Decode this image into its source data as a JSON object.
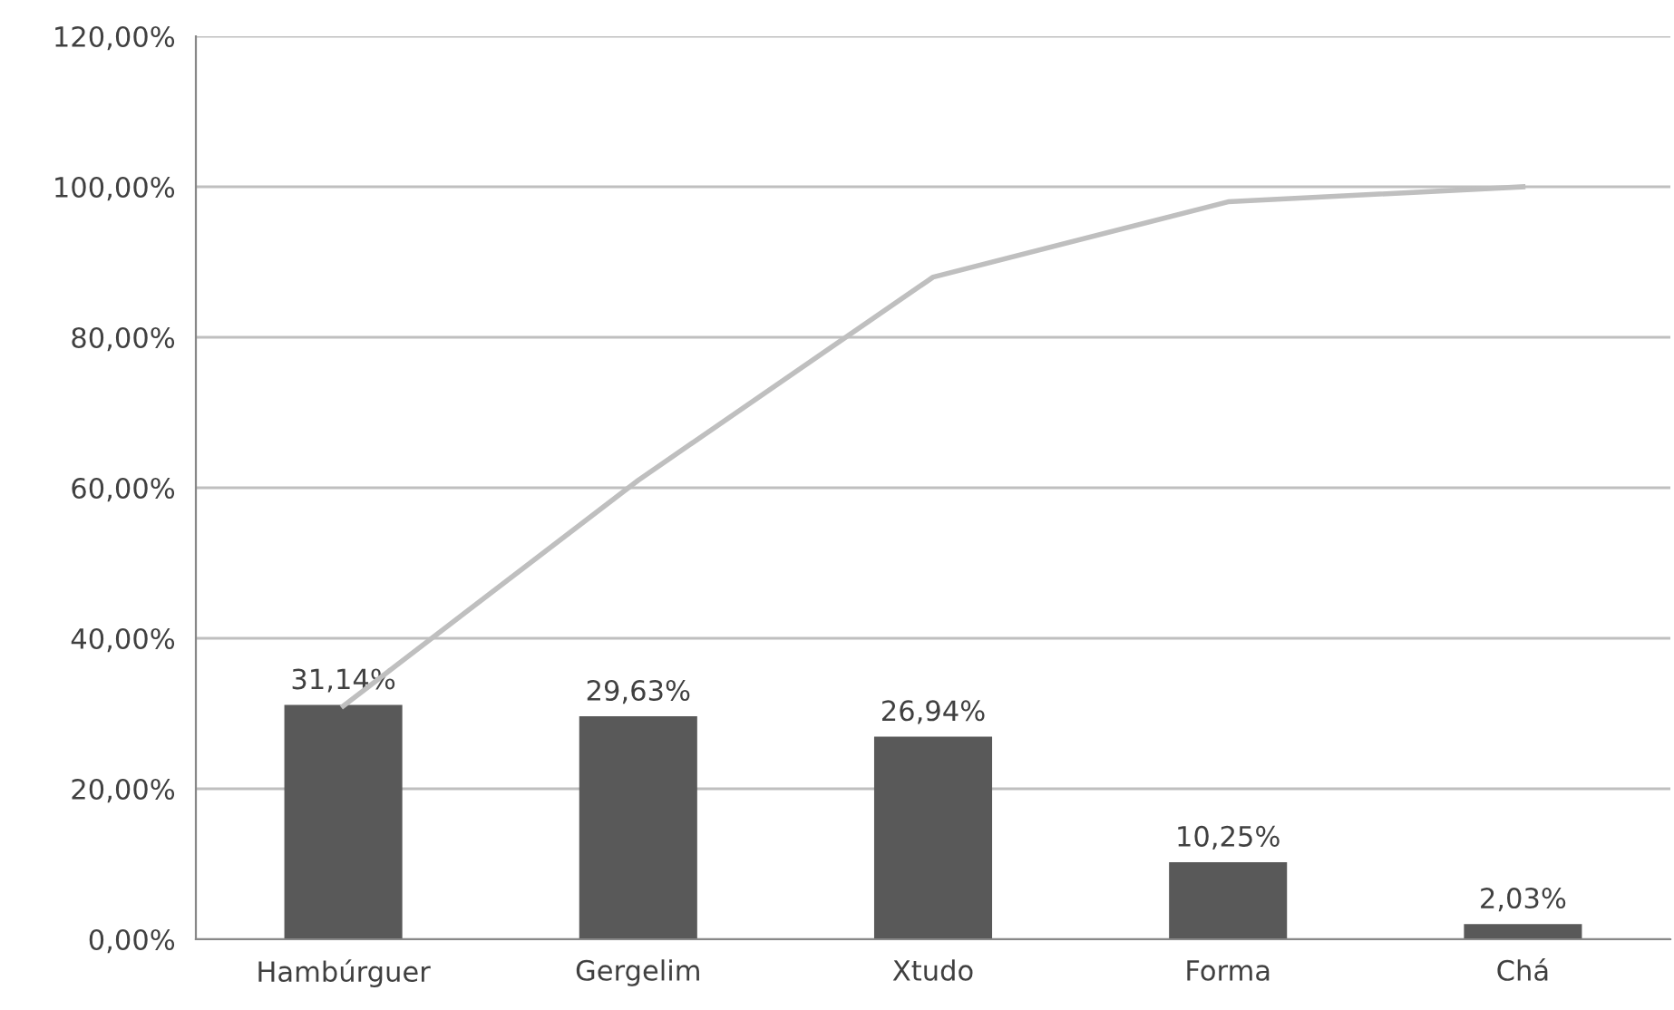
{
  "chart_data": {
    "type": "bar",
    "categories": [
      "Hambúrguer",
      "Gergelim",
      "Xtudo",
      "Forma",
      "Chá"
    ],
    "series": [
      {
        "color": "#595959",
        "values": [
          31.14,
          29.63,
          26.94,
          10.25,
          2.03
        ],
        "value_labels": [
          "31,14%",
          "29,63%",
          "26,94%",
          "10,25%",
          "2,03%"
        ]
      },
      {
        "type": "line",
        "color": "#bfbfbf",
        "values": [
          31,
          61,
          88,
          98,
          100
        ],
        "marker": "none",
        "line_style": "solid"
      }
    ],
    "ylim": [
      0,
      120
    ],
    "yticks": [
      {
        "value": 0,
        "label": "0,00%"
      },
      {
        "value": 20,
        "label": "20,00%"
      },
      {
        "value": 40,
        "label": "40,00%"
      },
      {
        "value": 60,
        "label": "60,00%"
      },
      {
        "value": 80,
        "label": "80,00%"
      },
      {
        "value": 100,
        "label": "100,00%"
      },
      {
        "value": 120,
        "label": "120,00%"
      }
    ],
    "grid": "y",
    "legend": false
  }
}
